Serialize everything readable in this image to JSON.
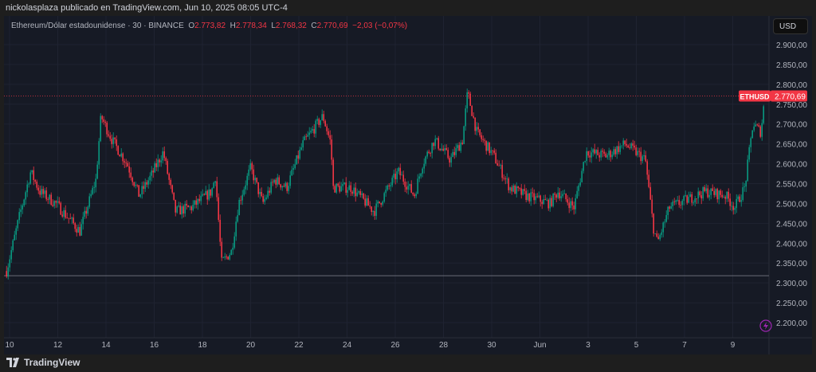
{
  "header": {
    "attribution": "nickolasplaza publicado en TradingView.com, Jun 10, 2025 08:05 UTC-4"
  },
  "legend": {
    "symbol": "Ethereum/Dólar estadounidense · 30 · BINANCE",
    "o_label": "O",
    "o": "2.773,82",
    "h_label": "H",
    "h": "2.778,34",
    "l_label": "L",
    "l": "2.768,32",
    "c_label": "C",
    "c": "2.770,69",
    "change": "−2,03 (−0,07%)"
  },
  "currency_button": "USD",
  "footer": {
    "brand": "TradingView"
  },
  "colors": {
    "up": "#089981",
    "down": "#f23645",
    "background": "#161a25"
  },
  "chart_data": {
    "type": "candlestick",
    "interval": "30",
    "symbol_tag": "ETHUSD",
    "last_price": 2770.69,
    "last_price_label": "2.770,69",
    "horizontal_line": 2318,
    "ylim": [
      2170,
      2940
    ],
    "y_ticks": [
      {
        "v": 2900,
        "label": "2.900,00"
      },
      {
        "v": 2850,
        "label": "2.850,00"
      },
      {
        "v": 2800,
        "label": "2.800,00"
      },
      {
        "v": 2750,
        "label": "2.750,00"
      },
      {
        "v": 2700,
        "label": "2.700,00"
      },
      {
        "v": 2650,
        "label": "2.650,00"
      },
      {
        "v": 2600,
        "label": "2.600,00"
      },
      {
        "v": 2550,
        "label": "2.550,00"
      },
      {
        "v": 2500,
        "label": "2.500,00"
      },
      {
        "v": 2450,
        "label": "2.450,00"
      },
      {
        "v": 2400,
        "label": "2.400,00"
      },
      {
        "v": 2350,
        "label": "2.350,00"
      },
      {
        "v": 2300,
        "label": "2.300,00"
      },
      {
        "v": 2250,
        "label": "2.250,00"
      },
      {
        "v": 2200,
        "label": "2.200,00"
      }
    ],
    "x_ticks": [
      {
        "t": "2025-05-10T00:00",
        "label": "10"
      },
      {
        "t": "2025-05-12T00:00",
        "label": "12"
      },
      {
        "t": "2025-05-14T00:00",
        "label": "14"
      },
      {
        "t": "2025-05-16T00:00",
        "label": "16"
      },
      {
        "t": "2025-05-18T00:00",
        "label": "18"
      },
      {
        "t": "2025-05-20T00:00",
        "label": "20"
      },
      {
        "t": "2025-05-22T00:00",
        "label": "22"
      },
      {
        "t": "2025-05-24T00:00",
        "label": "24"
      },
      {
        "t": "2025-05-26T00:00",
        "label": "26"
      },
      {
        "t": "2025-05-28T00:00",
        "label": "28"
      },
      {
        "t": "2025-05-30T00:00",
        "label": "30"
      },
      {
        "t": "2025-06-01T00:00",
        "label": "Jun"
      },
      {
        "t": "2025-06-03T00:00",
        "label": "3"
      },
      {
        "t": "2025-06-05T00:00",
        "label": "5"
      },
      {
        "t": "2025-06-07T00:00",
        "label": "7"
      },
      {
        "t": "2025-06-09T00:00",
        "label": "9"
      }
    ],
    "price_path": [
      [
        "2025-05-09T21:00",
        2330
      ],
      [
        "2025-05-10T10:00",
        2470
      ],
      [
        "2025-05-10T21:00",
        2580
      ],
      [
        "2025-05-11T06:00",
        2530
      ],
      [
        "2025-05-11T22:00",
        2500
      ],
      [
        "2025-05-12T22:00",
        2430
      ],
      [
        "2025-05-13T14:00",
        2560
      ],
      [
        "2025-05-13T19:00",
        2720
      ],
      [
        "2025-05-14T06:00",
        2660
      ],
      [
        "2025-05-14T21:00",
        2600
      ],
      [
        "2025-05-15T09:00",
        2520
      ],
      [
        "2025-05-15T21:00",
        2570
      ],
      [
        "2025-05-16T09:00",
        2630
      ],
      [
        "2025-05-16T21:00",
        2480
      ],
      [
        "2025-05-17T13:00",
        2490
      ],
      [
        "2025-05-18T09:00",
        2530
      ],
      [
        "2025-05-18T13:00",
        2570
      ],
      [
        "2025-05-18T19:00",
        2350
      ],
      [
        "2025-05-19T05:00",
        2380
      ],
      [
        "2025-05-19T12:00",
        2500
      ],
      [
        "2025-05-20T00:00",
        2590
      ],
      [
        "2025-05-20T12:00",
        2500
      ],
      [
        "2025-05-21T00:00",
        2560
      ],
      [
        "2025-05-21T12:00",
        2540
      ],
      [
        "2025-05-22T04:00",
        2650
      ],
      [
        "2025-05-23T00:00",
        2720
      ],
      [
        "2025-05-23T08:00",
        2650
      ],
      [
        "2025-05-23T10:00",
        2540
      ],
      [
        "2025-05-24T04:00",
        2540
      ],
      [
        "2025-05-25T03:00",
        2480
      ],
      [
        "2025-05-26T03:00",
        2580
      ],
      [
        "2025-05-26T19:00",
        2520
      ],
      [
        "2025-05-27T03:00",
        2600
      ],
      [
        "2025-05-27T15:00",
        2660
      ],
      [
        "2025-05-28T07:00",
        2610
      ],
      [
        "2025-05-28T19:00",
        2660
      ],
      [
        "2025-05-29T00:00",
        2780
      ],
      [
        "2025-05-29T09:00",
        2680
      ],
      [
        "2025-05-30T02:00",
        2620
      ],
      [
        "2025-05-30T18:00",
        2540
      ],
      [
        "2025-05-31T10:00",
        2520
      ],
      [
        "2025-06-01T10:00",
        2500
      ],
      [
        "2025-06-01T18:00",
        2530
      ],
      [
        "2025-06-02T10:00",
        2490
      ],
      [
        "2025-06-02T22:00",
        2630
      ],
      [
        "2025-06-03T18:00",
        2620
      ],
      [
        "2025-06-04T13:00",
        2650
      ],
      [
        "2025-06-05T09:00",
        2610
      ],
      [
        "2025-06-05T17:00",
        2440
      ],
      [
        "2025-06-05T21:00",
        2400
      ],
      [
        "2025-06-06T09:00",
        2490
      ],
      [
        "2025-06-07T21:00",
        2530
      ],
      [
        "2025-06-08T17:00",
        2520
      ],
      [
        "2025-06-09T02:00",
        2490
      ],
      [
        "2025-06-09T12:00",
        2540
      ],
      [
        "2025-06-09T20:00",
        2700
      ],
      [
        "2025-06-10T04:00",
        2680
      ],
      [
        "2025-06-10T08:00",
        2770
      ]
    ]
  }
}
